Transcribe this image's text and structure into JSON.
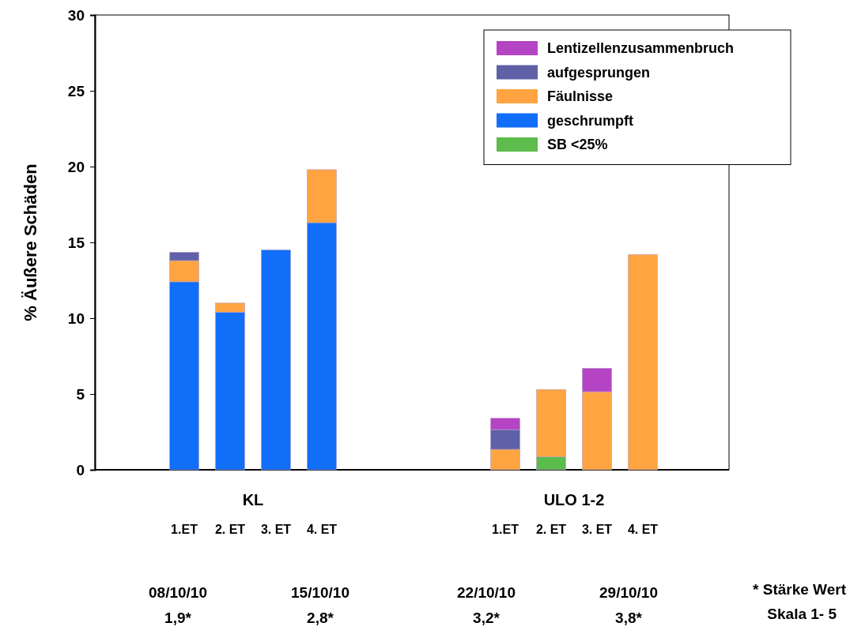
{
  "chart_data": {
    "type": "bar",
    "stacked": true,
    "ylabel": "% Äußere Schäden",
    "categories": [
      "1.ET",
      "2. ET",
      "3. ET",
      "4. ET",
      null,
      null,
      null,
      "1.ET",
      "2. ET",
      "3. ET",
      "4. ET"
    ],
    "series": [
      {
        "name": "SB <25%",
        "color": "#5cbc4c",
        "values": [
          0,
          0,
          0,
          0,
          null,
          null,
          null,
          0,
          0.85,
          0,
          0
        ]
      },
      {
        "name": "geschrumpft",
        "color": "#106ef8",
        "values": [
          12.4,
          10.4,
          14.5,
          16.3,
          null,
          null,
          null,
          0,
          0,
          0,
          0
        ]
      },
      {
        "name": "Fäulnisse",
        "color": "#ffa440",
        "values": [
          1.4,
          0.6,
          0,
          3.5,
          null,
          null,
          null,
          1.35,
          4.45,
          5.15,
          14.2
        ]
      },
      {
        "name": "aufgesprungen",
        "color": "#6060a8",
        "values": [
          0.55,
          0,
          0,
          0,
          null,
          null,
          null,
          1.3,
          0,
          0,
          0
        ]
      },
      {
        "name": "Lentizellenzusammenbruch",
        "color": "#b444c4",
        "values": [
          0,
          0,
          0,
          0,
          null,
          null,
          null,
          0.75,
          0,
          1.55,
          0
        ]
      }
    ],
    "ylim": [
      0,
      30
    ],
    "yticks": [
      0,
      5,
      10,
      15,
      20,
      25,
      30
    ],
    "legend": "top right",
    "annotations": [
      "KL",
      "ULO 1-2",
      "08/10/10",
      "1,9*",
      "15/10/10",
      "2,8*",
      "22/10/10",
      "3,2*",
      "29/10/10",
      "3,8*",
      "* Stärke Wert",
      "Skala 1- 5"
    ]
  }
}
